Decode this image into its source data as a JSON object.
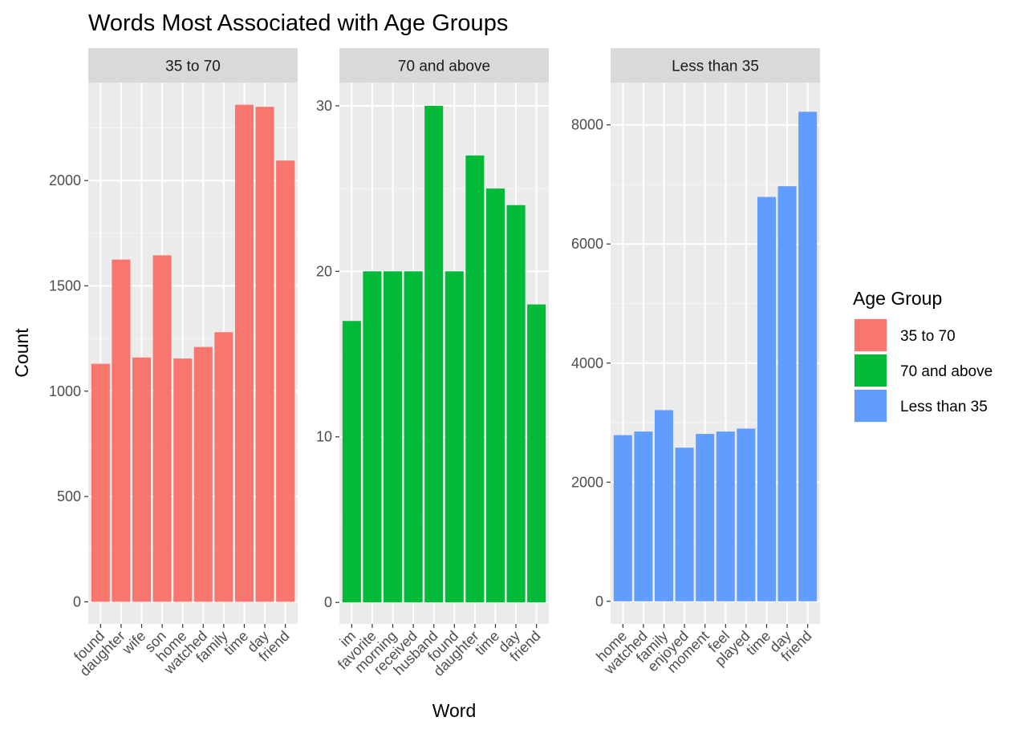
{
  "chart_data": {
    "type": "bar",
    "title": "Words Most Associated with Age Groups",
    "xlabel": "Word",
    "ylabel": "Count",
    "grid": true,
    "legend": {
      "title": "Age Group",
      "placement": "right",
      "entries": [
        {
          "label": "35 to 70",
          "color": "#F8766D"
        },
        {
          "label": "70 and above",
          "color": "#00BA38"
        },
        {
          "label": "Less than 35",
          "color": "#619CFF"
        }
      ]
    },
    "facets": [
      {
        "label": "35 to 70",
        "color": "#F8766D",
        "categories": [
          "found",
          "daughter",
          "wife",
          "son",
          "home",
          "watched",
          "family",
          "time",
          "day",
          "friend"
        ],
        "values": [
          1130,
          1625,
          1160,
          1645,
          1155,
          1210,
          1280,
          2360,
          2350,
          2095
        ],
        "ylim": [
          -105,
          2465
        ],
        "yticks": [
          0,
          500,
          1000,
          1500,
          2000
        ]
      },
      {
        "label": "70 and above",
        "color": "#00BA38",
        "categories": [
          "im",
          "favorite",
          "morning",
          "received",
          "husband",
          "found",
          "daughter",
          "time",
          "day",
          "friend"
        ],
        "values": [
          17,
          20,
          20,
          20,
          30,
          20,
          27,
          25,
          24,
          18
        ],
        "ylim": [
          -1.3,
          31.4
        ],
        "yticks": [
          0,
          10,
          20,
          30
        ]
      },
      {
        "label": "Less than 35",
        "color": "#619CFF",
        "categories": [
          "home",
          "watched",
          "family",
          "enjoyed",
          "moment",
          "feel",
          "played",
          "time",
          "day",
          "friend"
        ],
        "values": [
          2790,
          2850,
          3210,
          2580,
          2810,
          2850,
          2900,
          6790,
          6970,
          8220
        ],
        "ylim": [
          -380,
          8710
        ],
        "yticks": [
          0,
          2000,
          4000,
          6000,
          8000
        ]
      }
    ]
  }
}
